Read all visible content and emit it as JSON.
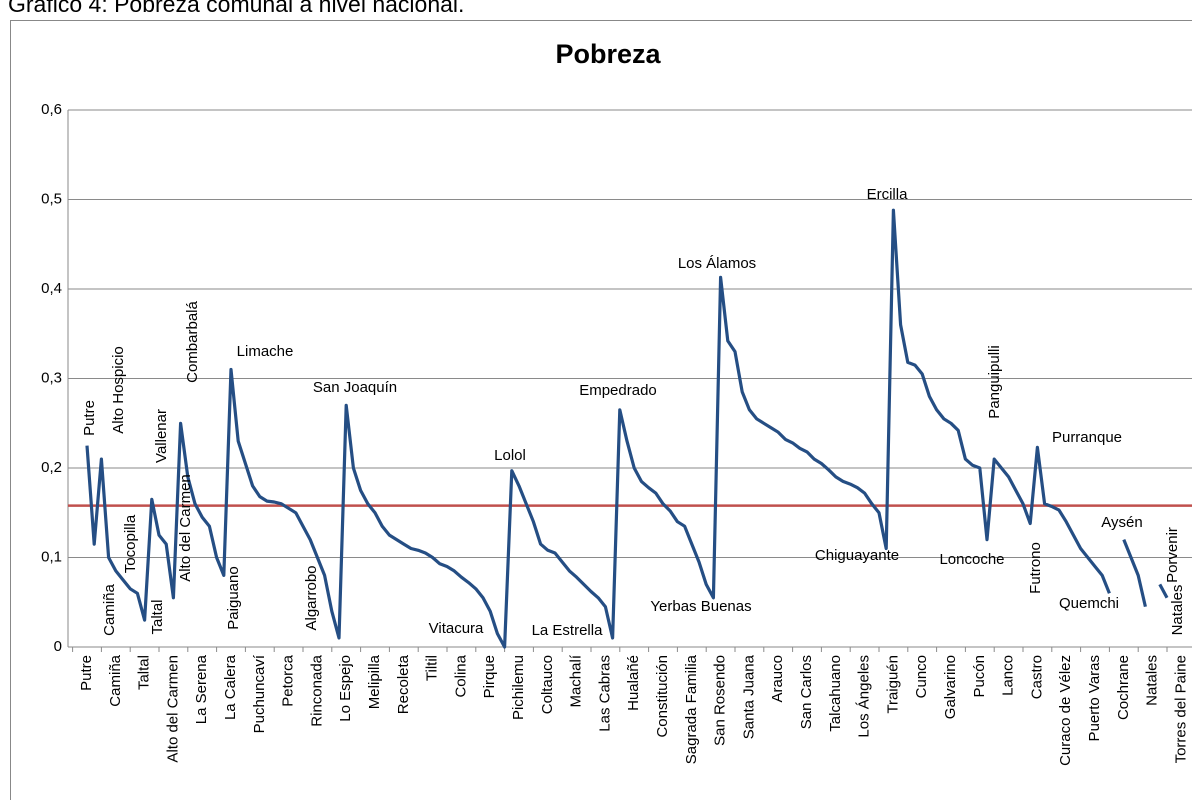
{
  "caption": "Gráfico 4: Pobreza comunal a nivel nacional.",
  "chart_data": {
    "type": "line",
    "title": "Pobreza",
    "categories": [
      "Putre",
      null,
      null,
      null,
      "Camiña",
      null,
      null,
      null,
      "Taltal",
      null,
      null,
      null,
      "Alto del Carmen",
      null,
      null,
      null,
      "La Serena",
      null,
      null,
      null,
      "La Calera",
      null,
      null,
      null,
      "Puchuncaví",
      null,
      null,
      null,
      "Petorca",
      null,
      null,
      null,
      "Rinconada",
      null,
      null,
      null,
      "Lo Espejo",
      null,
      null,
      null,
      "Melipilla",
      null,
      null,
      null,
      "Recoleta",
      null,
      null,
      null,
      "Tiltil",
      null,
      null,
      null,
      "Colina",
      null,
      null,
      null,
      "Pirque",
      null,
      null,
      null,
      "Pichilemu",
      null,
      null,
      null,
      "Coltauco",
      null,
      null,
      null,
      "Machalí",
      null,
      null,
      null,
      "Las Cabras",
      null,
      null,
      null,
      "Hualañé",
      null,
      null,
      null,
      "Constitución",
      null,
      null,
      null,
      "Sagrada Familia",
      null,
      null,
      null,
      "San Rosendo",
      null,
      null,
      null,
      "Santa Juana",
      null,
      null,
      null,
      "Arauco",
      null,
      null,
      null,
      "San Carlos",
      null,
      null,
      null,
      "Talcahuano",
      null,
      null,
      null,
      "Los Ángeles",
      null,
      null,
      null,
      "Traiguén",
      null,
      null,
      null,
      "Cunco",
      null,
      null,
      null,
      "Galvarino",
      null,
      null,
      null,
      "Pucón",
      null,
      null,
      null,
      "Lanco",
      null,
      null,
      null,
      "Castro",
      null,
      null,
      null,
      "Curaco de Vélez",
      null,
      null,
      null,
      "Puerto Varas",
      null,
      null,
      null,
      "Cochrane",
      null,
      null,
      null,
      "Natales",
      null,
      null,
      null,
      "Torres del Paine"
    ],
    "series": [
      {
        "name": "Pobreza",
        "color": "#254e84",
        "values": [
          0.225,
          0.115,
          0.21,
          0.1,
          0.085,
          0.075,
          0.065,
          0.06,
          0.03,
          0.165,
          0.125,
          0.115,
          0.055,
          0.25,
          0.19,
          0.16,
          0.145,
          0.135,
          0.1,
          0.08,
          0.31,
          0.23,
          0.205,
          0.18,
          0.168,
          0.163,
          0.162,
          0.16,
          0.155,
          0.15,
          0.135,
          0.12,
          0.1,
          0.08,
          0.04,
          0.01,
          0.27,
          0.2,
          0.175,
          0.16,
          0.15,
          0.135,
          0.125,
          0.12,
          0.115,
          0.11,
          0.108,
          0.105,
          0.1,
          0.093,
          0.09,
          0.085,
          0.078,
          0.072,
          0.065,
          0.055,
          0.04,
          0.015,
          0,
          0.197,
          0.18,
          0.16,
          0.14,
          0.115,
          0.108,
          0.105,
          0.095,
          0.085,
          0.078,
          0.07,
          0.062,
          0.055,
          0.045,
          0.01,
          0.265,
          0.23,
          0.2,
          0.185,
          0.178,
          0.172,
          0.16,
          0.152,
          0.14,
          0.135,
          0.115,
          0.095,
          0.07,
          0.055,
          0.413,
          0.342,
          0.33,
          0.285,
          0.265,
          0.255,
          0.25,
          0.245,
          0.24,
          0.232,
          0.228,
          0.222,
          0.218,
          0.21,
          0.205,
          0.198,
          0.19,
          0.185,
          0.182,
          0.178,
          0.172,
          0.16,
          0.15,
          0.11,
          0.488,
          0.36,
          0.318,
          0.315,
          0.305,
          0.28,
          0.265,
          0.255,
          0.25,
          0.242,
          0.21,
          0.203,
          0.2,
          0.12,
          0.21,
          0.2,
          0.19,
          0.175,
          0.16,
          0.138,
          0.223,
          0.16,
          0.157,
          0.153,
          0.14,
          0.125,
          0.11,
          0.1,
          0.09,
          0.08,
          0.06,
          null,
          0.12,
          0.1,
          0.08,
          0.045,
          null,
          0.07,
          0.055,
          null,
          null
        ]
      }
    ],
    "reference_line": {
      "value": 0.158,
      "color": "#c0504d"
    },
    "ylim": [
      0,
      0.6
    ],
    "yticks": [
      0,
      {
        "value": 0.1,
        "label": "0,1"
      },
      {
        "value": 0.2,
        "label": "0,2"
      },
      {
        "value": 0.3,
        "label": "0,3"
      },
      {
        "value": 0.4,
        "label": "0,4"
      },
      {
        "value": 0.5,
        "label": "0,5"
      },
      {
        "value": 0.6,
        "label": "0,6"
      }
    ],
    "grid": true,
    "annotations": [
      "Putre",
      "Alto Hospicio",
      "Camiña",
      "Tocopilla",
      "Taltal",
      "Vallenar",
      "Alto del Carmen",
      "Combarbalá",
      "Paiguano",
      "Limache",
      "Algarrobo",
      "San Joaquín",
      "Lolol",
      "Vitacura",
      "La Estrella",
      "Empedrado",
      "Yerbas Buenas",
      "Los Álamos",
      "Ercilla",
      "Chiguayante",
      "Panguipulli",
      "Loncoche",
      "Purranque",
      "Futrono",
      "Aysén",
      "Quemchi",
      "Porvenir",
      "Natales"
    ]
  }
}
